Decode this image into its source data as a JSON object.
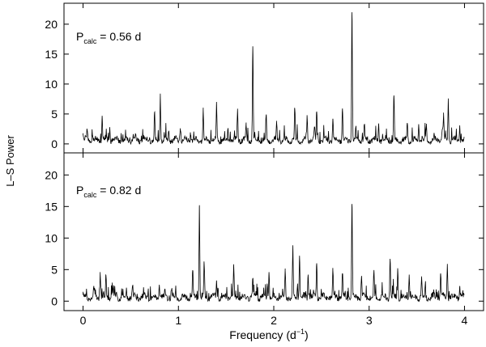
{
  "chart_data": [
    {
      "type": "line",
      "annotation": {
        "base": "P",
        "sub": "calc",
        "rest": " = 0.56 d"
      },
      "ylabel": "L–S Power",
      "xlim": [
        -0.2,
        4.2
      ],
      "ylim": [
        -1.5,
        23.5
      ],
      "yticks": [
        0,
        5,
        10,
        15,
        20
      ],
      "grid": false,
      "peaks": [
        {
          "x": 0.0,
          "y": 1.6
        },
        {
          "x": 0.1,
          "y": 1.4
        },
        {
          "x": 0.2,
          "y": 4.7
        },
        {
          "x": 0.28,
          "y": 2.8
        },
        {
          "x": 0.4,
          "y": 1.8
        },
        {
          "x": 0.55,
          "y": 1.4
        },
        {
          "x": 0.75,
          "y": 5.3
        },
        {
          "x": 0.81,
          "y": 8.4
        },
        {
          "x": 0.9,
          "y": 2.2
        },
        {
          "x": 1.02,
          "y": 2.6
        },
        {
          "x": 1.13,
          "y": 1.5
        },
        {
          "x": 1.26,
          "y": 5.7
        },
        {
          "x": 1.4,
          "y": 6.6
        },
        {
          "x": 1.62,
          "y": 5.8
        },
        {
          "x": 1.71,
          "y": 3.1
        },
        {
          "x": 1.78,
          "y": 16.3
        },
        {
          "x": 1.92,
          "y": 4.8
        },
        {
          "x": 2.03,
          "y": 3.6
        },
        {
          "x": 2.22,
          "y": 5.9
        },
        {
          "x": 2.35,
          "y": 4.5
        },
        {
          "x": 2.45,
          "y": 5.4
        },
        {
          "x": 2.62,
          "y": 4.2
        },
        {
          "x": 2.72,
          "y": 5.9
        },
        {
          "x": 2.82,
          "y": 22.0
        },
        {
          "x": 2.95,
          "y": 3.2
        },
        {
          "x": 3.1,
          "y": 3.4
        },
        {
          "x": 3.26,
          "y": 8.1
        },
        {
          "x": 3.4,
          "y": 3.5
        },
        {
          "x": 3.52,
          "y": 3.3
        },
        {
          "x": 3.6,
          "y": 3.0
        },
        {
          "x": 3.78,
          "y": 4.8
        },
        {
          "x": 3.83,
          "y": 7.6
        },
        {
          "x": 3.95,
          "y": 3.1
        }
      ]
    },
    {
      "type": "line",
      "annotation": {
        "base": "P",
        "sub": "calc",
        "rest": " = 0.82 d"
      },
      "xlabel": {
        "base": "Frequency (d",
        "sup": "−1",
        "rest": ")"
      },
      "xlim": [
        -0.2,
        4.2
      ],
      "ylim": [
        -1.5,
        23.5
      ],
      "xticks": [
        0,
        1,
        2,
        3,
        4
      ],
      "yticks": [
        0,
        5,
        10,
        15,
        20
      ],
      "grid": false,
      "peaks": [
        {
          "x": 0.0,
          "y": 1.0
        },
        {
          "x": 0.12,
          "y": 1.8
        },
        {
          "x": 0.18,
          "y": 4.6
        },
        {
          "x": 0.24,
          "y": 4.1
        },
        {
          "x": 0.35,
          "y": 1.4
        },
        {
          "x": 0.52,
          "y": 2.4
        },
        {
          "x": 0.68,
          "y": 1.3
        },
        {
          "x": 0.8,
          "y": 2.6
        },
        {
          "x": 0.93,
          "y": 1.9
        },
        {
          "x": 1.15,
          "y": 4.9
        },
        {
          "x": 1.22,
          "y": 15.2
        },
        {
          "x": 1.27,
          "y": 5.8
        },
        {
          "x": 1.4,
          "y": 3.2
        },
        {
          "x": 1.58,
          "y": 5.5
        },
        {
          "x": 1.78,
          "y": 3.6
        },
        {
          "x": 1.95,
          "y": 4.6
        },
        {
          "x": 2.12,
          "y": 4.9
        },
        {
          "x": 2.2,
          "y": 8.4
        },
        {
          "x": 2.27,
          "y": 7.2
        },
        {
          "x": 2.36,
          "y": 4.2
        },
        {
          "x": 2.45,
          "y": 6.0
        },
        {
          "x": 2.62,
          "y": 4.8
        },
        {
          "x": 2.72,
          "y": 4.4
        },
        {
          "x": 2.82,
          "y": 15.4
        },
        {
          "x": 2.92,
          "y": 3.9
        },
        {
          "x": 3.05,
          "y": 4.7
        },
        {
          "x": 3.22,
          "y": 6.7
        },
        {
          "x": 3.3,
          "y": 5.2
        },
        {
          "x": 3.42,
          "y": 4.2
        },
        {
          "x": 3.55,
          "y": 3.8
        },
        {
          "x": 3.75,
          "y": 4.4
        },
        {
          "x": 3.82,
          "y": 5.9
        },
        {
          "x": 3.95,
          "y": 2.4
        }
      ]
    }
  ]
}
